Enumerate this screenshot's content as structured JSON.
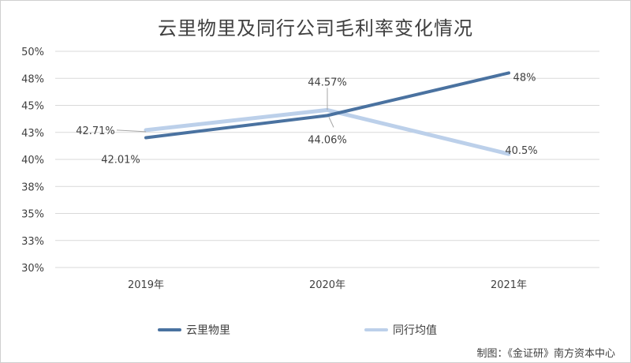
{
  "title": "云里物里及同行公司毛利率变化情况",
  "credit": "制图：《金证研》南方资本中心",
  "colors": {
    "series1": "#4a72a0",
    "series2": "#bcd0ea",
    "grid": "#d9d9d9",
    "leader": "#a6a6a6"
  },
  "chart_data": {
    "type": "line",
    "title": "云里物里及同行公司毛利率变化情况",
    "categories": [
      "2019年",
      "2020年",
      "2021年"
    ],
    "yticks": [
      "30%",
      "33%",
      "35%",
      "38%",
      "40%",
      "43%",
      "45%",
      "48%",
      "50%"
    ],
    "ylim": [
      30,
      50
    ],
    "grid": true,
    "legend_position": "bottom",
    "series": [
      {
        "name": "云里物里",
        "values": [
          42.01,
          44.06,
          48
        ],
        "labels": [
          "42.01%",
          "44.06%",
          "48%"
        ]
      },
      {
        "name": "同行均值",
        "values": [
          42.71,
          44.57,
          40.5
        ],
        "labels": [
          "42.71%",
          "44.57%",
          "40.5%"
        ]
      }
    ]
  }
}
